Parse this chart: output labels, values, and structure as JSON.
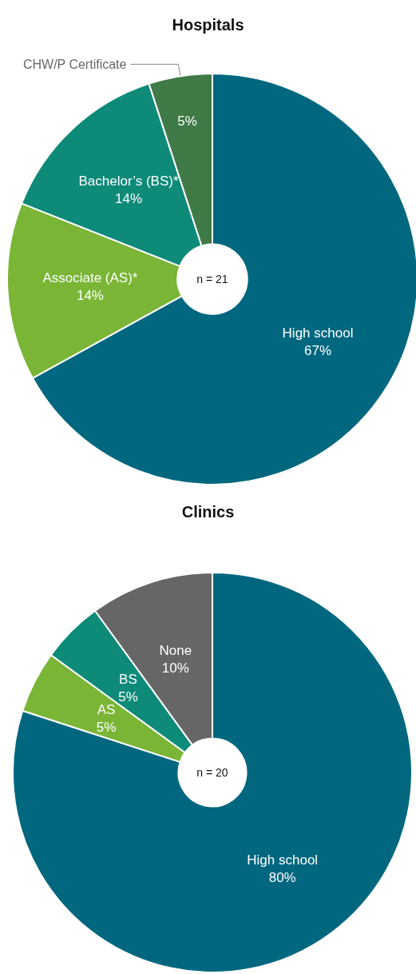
{
  "chart_data": [
    {
      "type": "donut",
      "title": "Hospitals",
      "categories": [
        "High school",
        "Associate (AS)*",
        "Bachelor’s (BS)*",
        "CHW/P Certificate"
      ],
      "values": [
        67,
        14,
        14,
        5
      ],
      "value_labels": [
        "67%",
        "14%",
        "14%",
        "5%"
      ],
      "colors": [
        "#00677f",
        "#7ab536",
        "#0d8a78",
        "#3f7a47"
      ],
      "annotations": [
        "n = 21"
      ]
    },
    {
      "type": "donut",
      "title": "Clinics",
      "categories": [
        "High school",
        "AS",
        "BS",
        "None"
      ],
      "values": [
        80,
        5,
        5,
        10
      ],
      "value_labels": [
        "80%",
        "5%",
        "5%",
        "10%"
      ],
      "colors": [
        "#00677f",
        "#7ab536",
        "#0d8a78",
        "#666666"
      ],
      "annotations": [
        "n = 20"
      ]
    }
  ]
}
